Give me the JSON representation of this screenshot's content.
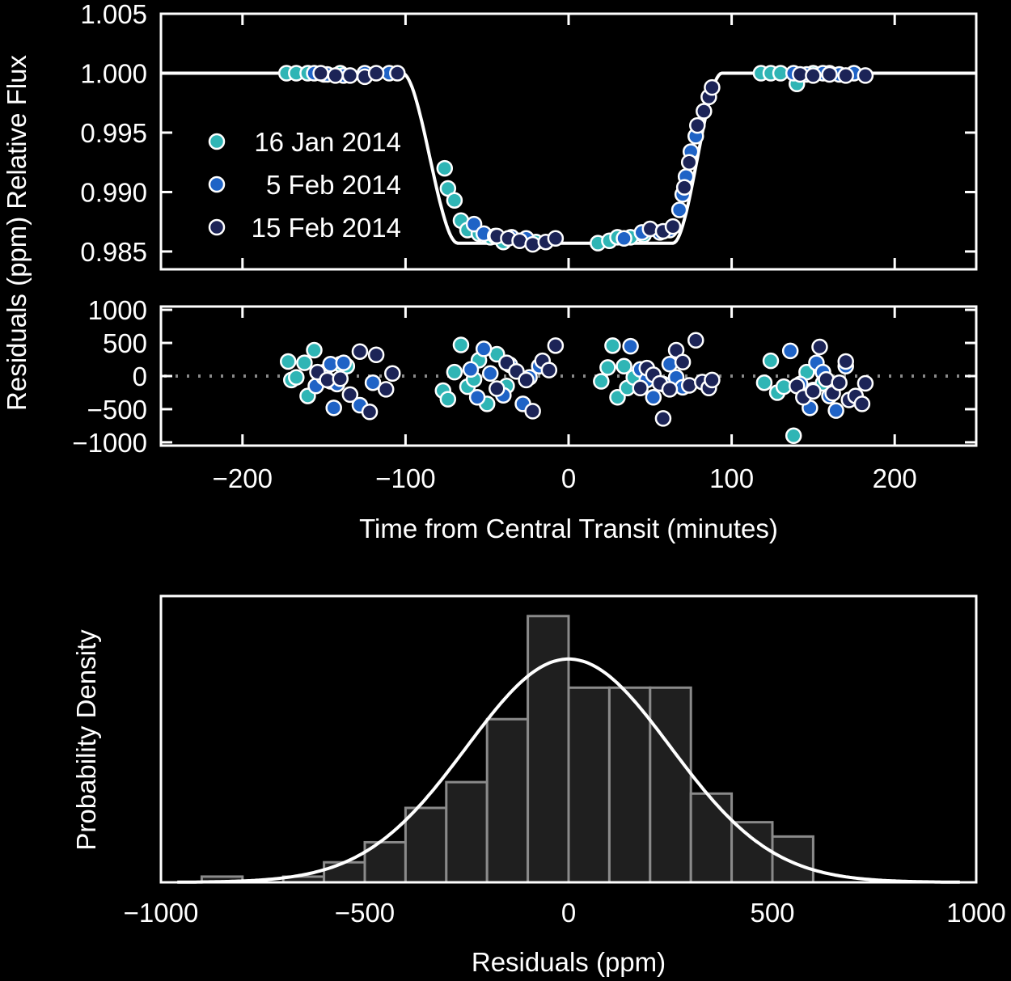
{
  "colors": {
    "background": "#000000",
    "foreground": "#ffffff",
    "series": [
      "#2fb5b5",
      "#1f63c6",
      "#1c2457"
    ],
    "histogram_fill": "#1f1f1f",
    "histogram_edge": "#8a8a8a",
    "zero_line": "#8a8a8a"
  },
  "chart_data": [
    {
      "id": "light_curve",
      "type": "scatter",
      "ylabel": "Relative Flux",
      "xlim": [
        -250,
        250
      ],
      "ylim": [
        0.9835,
        1.005
      ],
      "yticks": [
        0.985,
        0.99,
        0.995,
        1.0,
        1.005
      ],
      "ytick_labels": [
        "0.985",
        "0.990",
        "0.995",
        "1.000",
        "1.005"
      ],
      "legend": {
        "position": "left",
        "entries": [
          "16 Jan 2014",
          "5 Feb 2014",
          "15 Feb 2014"
        ]
      },
      "model": {
        "baseline": 1.0,
        "depth": 0.0143,
        "ingress_start": -102,
        "ingress_end": -68,
        "egress_start": 64,
        "egress_end": 94,
        "x_start": -250,
        "x_end": 250
      },
      "series": [
        {
          "name": "16 Jan 2014",
          "points": [
            [
              -173,
              1.0
            ],
            [
              -167,
              1.0
            ],
            [
              -160,
              1.0
            ],
            [
              -150,
              0.9999
            ],
            [
              -140,
              1.0
            ],
            [
              -76,
              0.992
            ],
            [
              -74,
              0.9903
            ],
            [
              -70,
              0.9893
            ],
            [
              -66,
              0.9876
            ],
            [
              -62,
              0.9868
            ],
            [
              -55,
              0.9865
            ],
            [
              -48,
              0.9862
            ],
            [
              -40,
              0.9858
            ],
            [
              -20,
              0.9858
            ],
            [
              18,
              0.9857
            ],
            [
              25,
              0.9859
            ],
            [
              30,
              0.9862
            ],
            [
              38,
              0.9862
            ],
            [
              46,
              0.9864
            ],
            [
              118,
              1.0
            ],
            [
              124,
              1.0
            ],
            [
              130,
              1.0
            ],
            [
              140,
              0.9991
            ],
            [
              150,
              1.0
            ],
            [
              160,
              1.0
            ]
          ]
        },
        {
          "name": "5 Feb 2014",
          "points": [
            [
              -156,
              1.0
            ],
            [
              -148,
              0.9999
            ],
            [
              -138,
              0.9998
            ],
            [
              -125,
              1.0
            ],
            [
              -110,
              1.0
            ],
            [
              -58,
              0.9873
            ],
            [
              -52,
              0.9865
            ],
            [
              -45,
              0.9863
            ],
            [
              -35,
              0.9862
            ],
            [
              -26,
              0.9861
            ],
            [
              34,
              0.9861
            ],
            [
              45,
              0.9866
            ],
            [
              56,
              0.9866
            ],
            [
              62,
              0.9868
            ],
            [
              68,
              0.9885
            ],
            [
              70,
              0.9898
            ],
            [
              72,
              0.9913
            ],
            [
              75,
              0.9934
            ],
            [
              78,
              0.9947
            ],
            [
              138,
              1.0
            ],
            [
              146,
              0.9999
            ],
            [
              156,
              1.0
            ],
            [
              166,
              0.9999
            ],
            [
              175,
              1.0
            ]
          ]
        },
        {
          "name": "15 Feb 2014",
          "points": [
            [
              -152,
              1.0
            ],
            [
              -143,
              0.9998
            ],
            [
              -134,
              0.9998
            ],
            [
              -125,
              0.9997
            ],
            [
              -118,
              1.0
            ],
            [
              -105,
              1.0
            ],
            [
              -44,
              0.9863
            ],
            [
              -37,
              0.9861
            ],
            [
              -30,
              0.9859
            ],
            [
              -22,
              0.9856
            ],
            [
              -14,
              0.9858
            ],
            [
              -8,
              0.9861
            ],
            [
              50,
              0.9869
            ],
            [
              58,
              0.9867
            ],
            [
              64,
              0.9871
            ],
            [
              71,
              0.9904
            ],
            [
              74,
              0.9925
            ],
            [
              79,
              0.9956
            ],
            [
              83,
              0.9968
            ],
            [
              86,
              0.998
            ],
            [
              88,
              0.9988
            ],
            [
              142,
              0.9999
            ],
            [
              150,
              0.9998
            ],
            [
              160,
              0.9999
            ],
            [
              170,
              0.9998
            ],
            [
              182,
              0.9998
            ]
          ]
        }
      ]
    },
    {
      "id": "residuals",
      "type": "scatter",
      "xlabel": "Time from Central Transit (minutes)",
      "ylabel": "Residuals (ppm)",
      "xlim": [
        -250,
        250
      ],
      "ylim": [
        -1050,
        1050
      ],
      "xticks": [
        -200,
        -100,
        0,
        100,
        200
      ],
      "xtick_labels": [
        "−200",
        "−100",
        "0",
        "100",
        "200"
      ],
      "yticks": [
        -1000,
        -500,
        0,
        500,
        1000
      ],
      "ytick_labels": [
        "−1000",
        "−500",
        "0",
        "500",
        "1000"
      ],
      "zero_line": true,
      "series": [
        {
          "name": "16 Jan 2014",
          "points": [
            [
              -172,
              220
            ],
            [
              -170,
              -60
            ],
            [
              -167,
              -20
            ],
            [
              -162,
              200
            ],
            [
              -160,
              -300
            ],
            [
              -156,
              390
            ],
            [
              -150,
              60
            ],
            [
              -146,
              -80
            ],
            [
              -140,
              180
            ],
            [
              -136,
              150
            ],
            [
              -77,
              -220
            ],
            [
              -74,
              -350
            ],
            [
              -70,
              60
            ],
            [
              -66,
              470
            ],
            [
              -62,
              -160
            ],
            [
              -58,
              -50
            ],
            [
              -55,
              240
            ],
            [
              -50,
              -420
            ],
            [
              -44,
              330
            ],
            [
              -38,
              -150
            ],
            [
              20,
              -80
            ],
            [
              24,
              130
            ],
            [
              27,
              460
            ],
            [
              30,
              -320
            ],
            [
              34,
              150
            ],
            [
              36,
              -180
            ],
            [
              40,
              -20
            ],
            [
              120,
              -100
            ],
            [
              124,
              230
            ],
            [
              128,
              -250
            ],
            [
              132,
              -160
            ],
            [
              138,
              -900
            ],
            [
              146,
              60
            ],
            [
              150,
              -210
            ],
            [
              156,
              -110
            ]
          ]
        },
        {
          "name": "5 Feb 2014",
          "points": [
            [
              -155,
              -150
            ],
            [
              -150,
              -20
            ],
            [
              -146,
              180
            ],
            [
              -142,
              -120
            ],
            [
              -138,
              200
            ],
            [
              -144,
              -480
            ],
            [
              -128,
              -440
            ],
            [
              -120,
              -100
            ],
            [
              -60,
              100
            ],
            [
              -56,
              -320
            ],
            [
              -52,
              410
            ],
            [
              -48,
              40
            ],
            [
              -40,
              -290
            ],
            [
              -36,
              170
            ],
            [
              -28,
              -420
            ],
            [
              -24,
              -20
            ],
            [
              -18,
              150
            ],
            [
              38,
              450
            ],
            [
              44,
              100
            ],
            [
              48,
              -60
            ],
            [
              52,
              -320
            ],
            [
              58,
              -120
            ],
            [
              62,
              180
            ],
            [
              66,
              -20
            ],
            [
              70,
              -170
            ],
            [
              136,
              380
            ],
            [
              142,
              -120
            ],
            [
              148,
              -480
            ],
            [
              152,
              200
            ],
            [
              156,
              60
            ],
            [
              160,
              -300
            ],
            [
              164,
              -520
            ],
            [
              170,
              150
            ]
          ]
        },
        {
          "name": "15 Feb 2014",
          "points": [
            [
              -154,
              60
            ],
            [
              -148,
              -60
            ],
            [
              -140,
              -40
            ],
            [
              -134,
              -280
            ],
            [
              -128,
              370
            ],
            [
              -122,
              -540
            ],
            [
              -118,
              320
            ],
            [
              -112,
              -200
            ],
            [
              -108,
              40
            ],
            [
              -44,
              -190
            ],
            [
              -38,
              200
            ],
            [
              -32,
              70
            ],
            [
              -26,
              -60
            ],
            [
              -22,
              -530
            ],
            [
              -16,
              230
            ],
            [
              -12,
              90
            ],
            [
              -8,
              460
            ],
            [
              44,
              -180
            ],
            [
              48,
              120
            ],
            [
              52,
              20
            ],
            [
              56,
              -110
            ],
            [
              58,
              -640
            ],
            [
              62,
              -200
            ],
            [
              66,
              390
            ],
            [
              70,
              210
            ],
            [
              74,
              -140
            ],
            [
              78,
              540
            ],
            [
              82,
              -90
            ],
            [
              86,
              -180
            ],
            [
              88,
              -60
            ],
            [
              140,
              -150
            ],
            [
              144,
              -320
            ],
            [
              150,
              -230
            ],
            [
              154,
              440
            ],
            [
              158,
              -50
            ],
            [
              162,
              -260
            ],
            [
              166,
              -100
            ],
            [
              170,
              220
            ],
            [
              172,
              -360
            ],
            [
              176,
              -300
            ],
            [
              180,
              -420
            ],
            [
              182,
              -110
            ]
          ]
        }
      ]
    },
    {
      "id": "histogram",
      "type": "bar",
      "xlabel": "Residuals (ppm)",
      "ylabel": "Probability Density",
      "xlim": [
        -1000,
        1000
      ],
      "ylim": [
        0,
        1.0
      ],
      "xticks": [
        -1000,
        -500,
        0,
        500,
        1000
      ],
      "xtick_labels": [
        "−1000",
        "−500",
        "0",
        "500",
        "1000"
      ],
      "bin_width": 100,
      "bins": [
        {
          "left": -900,
          "value": 0.02
        },
        {
          "left": -700,
          "value": 0.02
        },
        {
          "left": -600,
          "value": 0.07
        },
        {
          "left": -500,
          "value": 0.14
        },
        {
          "left": -400,
          "value": 0.26
        },
        {
          "left": -300,
          "value": 0.35
        },
        {
          "left": -200,
          "value": 0.57
        },
        {
          "left": -100,
          "value": 0.93
        },
        {
          "left": 0,
          "value": 0.68
        },
        {
          "left": 100,
          "value": 0.68
        },
        {
          "left": 200,
          "value": 0.68
        },
        {
          "left": 300,
          "value": 0.31
        },
        {
          "left": 400,
          "value": 0.21
        },
        {
          "left": 500,
          "value": 0.16
        }
      ],
      "curve": {
        "type": "gaussian",
        "mean": 0,
        "sigma": 250,
        "peak": 0.78
      }
    }
  ]
}
